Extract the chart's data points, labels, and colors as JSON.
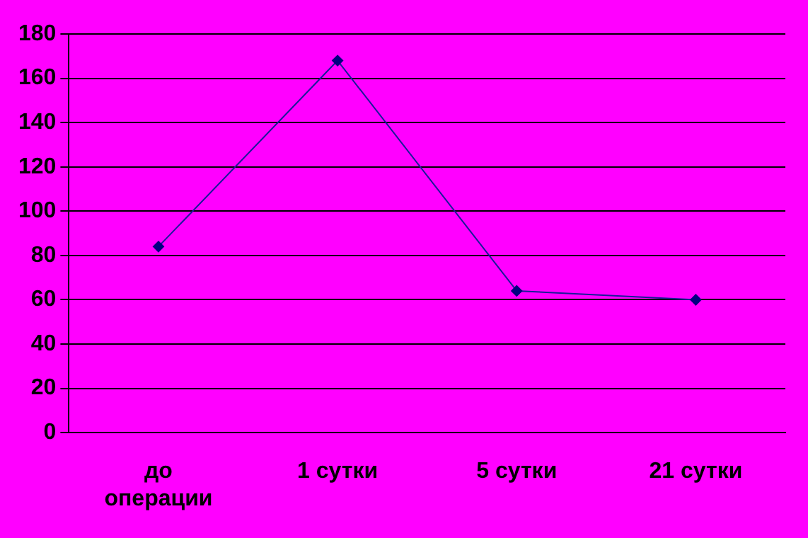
{
  "chart_data": {
    "type": "line",
    "categories": [
      "до операции",
      "1 сутки",
      "5 сутки",
      "21 сутки"
    ],
    "series": [
      {
        "color": "#1a1a99",
        "values": [
          84,
          168,
          64,
          60
        ]
      }
    ],
    "ylim": [
      0,
      180
    ],
    "yticks": [
      0,
      20,
      40,
      60,
      80,
      100,
      120,
      140,
      160,
      180
    ],
    "grid": "y",
    "legend": false,
    "marker": "diamond",
    "line_style": "solid"
  }
}
